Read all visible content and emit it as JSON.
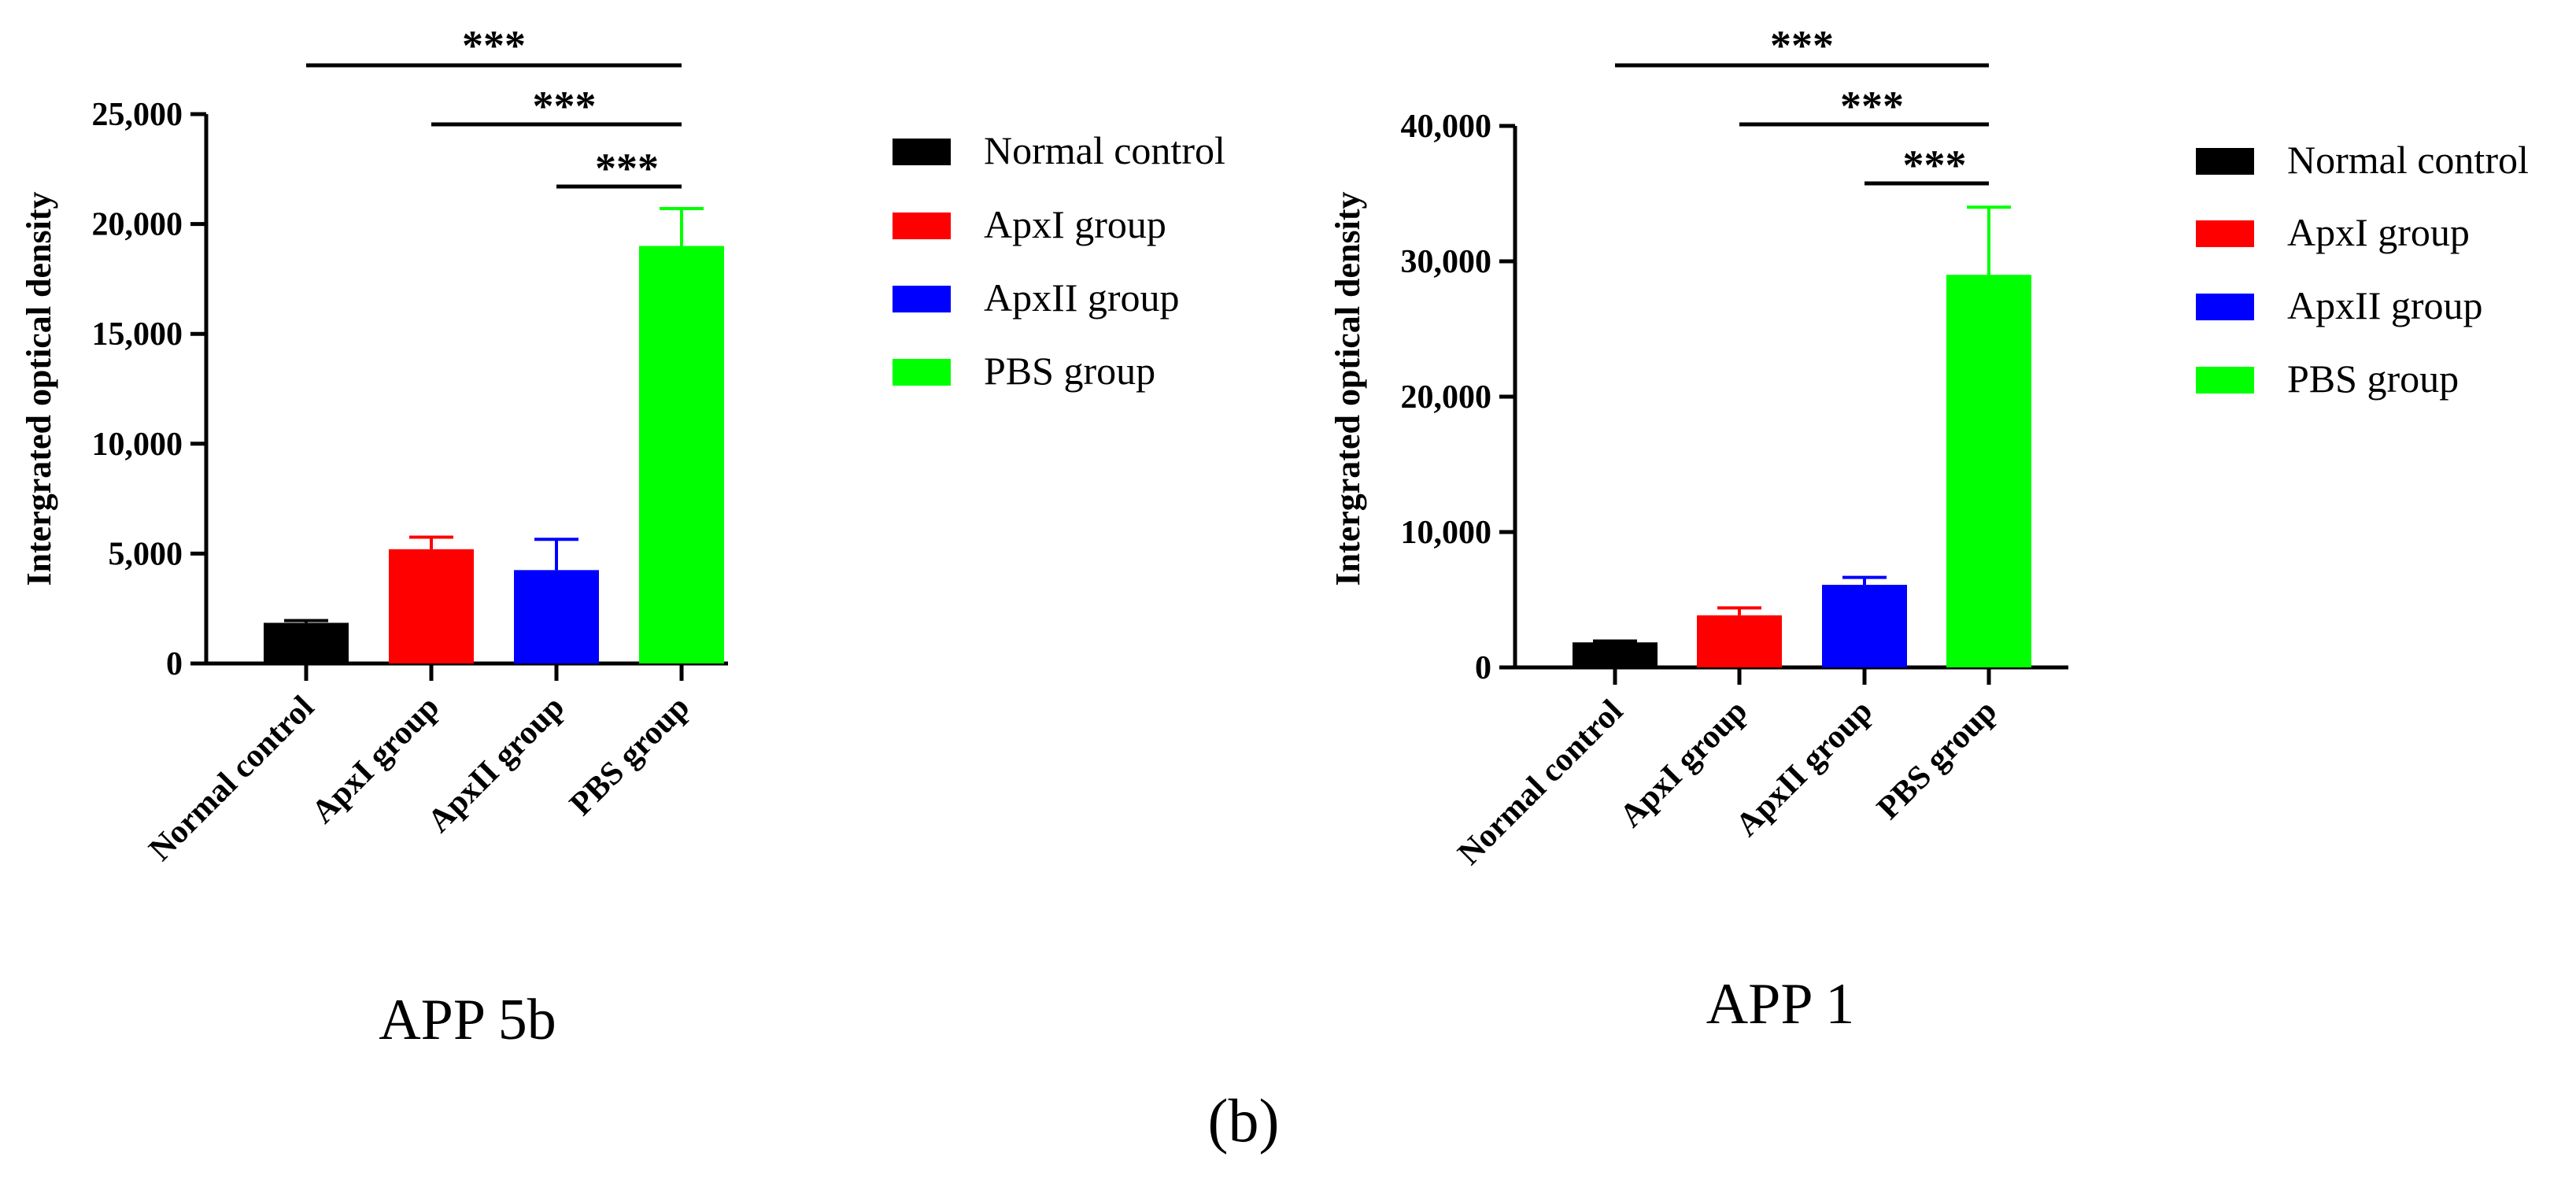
{
  "figure": {
    "panel_label": "(b)"
  },
  "chart_data": [
    {
      "type": "bar",
      "title": "APP 5b",
      "xlabel": "",
      "ylabel": "Intergrated optical density",
      "ylim": [
        0,
        25000
      ],
      "yticks": [
        {
          "value": 0,
          "label": "0"
        },
        {
          "value": 5000,
          "label": "5,000"
        },
        {
          "value": 10000,
          "label": "10,000"
        },
        {
          "value": 15000,
          "label": "15,000"
        },
        {
          "value": 20000,
          "label": "20,000"
        },
        {
          "value": 25000,
          "label": "25,000"
        }
      ],
      "categories": [
        "Normal control",
        "ApxI group",
        "ApxII group",
        "PBS group"
      ],
      "values": [
        1850,
        5200,
        4250,
        19000
      ],
      "errors": [
        100,
        550,
        1400,
        1700
      ],
      "colors": [
        "#000000",
        "#ff0000",
        "#0000ff",
        "#00ff00"
      ],
      "legend": {
        "position": "right",
        "entries": [
          "Normal control",
          "ApxI group",
          "ApxII group",
          "PBS group"
        ]
      },
      "significance": [
        {
          "from": 0,
          "to": 3,
          "label": "***"
        },
        {
          "from": 1,
          "to": 3,
          "label": "***"
        },
        {
          "from": 2,
          "to": 3,
          "label": "***"
        }
      ]
    },
    {
      "type": "bar",
      "title": "APP 1",
      "xlabel": "",
      "ylabel": "Intergrated optical density",
      "ylim": [
        0,
        40000
      ],
      "yticks": [
        {
          "value": 0,
          "label": "0"
        },
        {
          "value": 10000,
          "label": "10,000"
        },
        {
          "value": 20000,
          "label": "20,000"
        },
        {
          "value": 30000,
          "label": "30,000"
        },
        {
          "value": 40000,
          "label": "40,000"
        }
      ],
      "categories": [
        "Normal control",
        "ApxI group",
        "ApxII group",
        "PBS group"
      ],
      "values": [
        1850,
        3850,
        6100,
        29000
      ],
      "errors": [
        100,
        550,
        550,
        5000
      ],
      "colors": [
        "#000000",
        "#ff0000",
        "#0000ff",
        "#00ff00"
      ],
      "legend": {
        "position": "right",
        "entries": [
          "Normal control",
          "ApxI group",
          "ApxII group",
          "PBS group"
        ]
      },
      "significance": [
        {
          "from": 0,
          "to": 3,
          "label": "***"
        },
        {
          "from": 1,
          "to": 3,
          "label": "***"
        },
        {
          "from": 2,
          "to": 3,
          "label": "***"
        }
      ]
    }
  ]
}
